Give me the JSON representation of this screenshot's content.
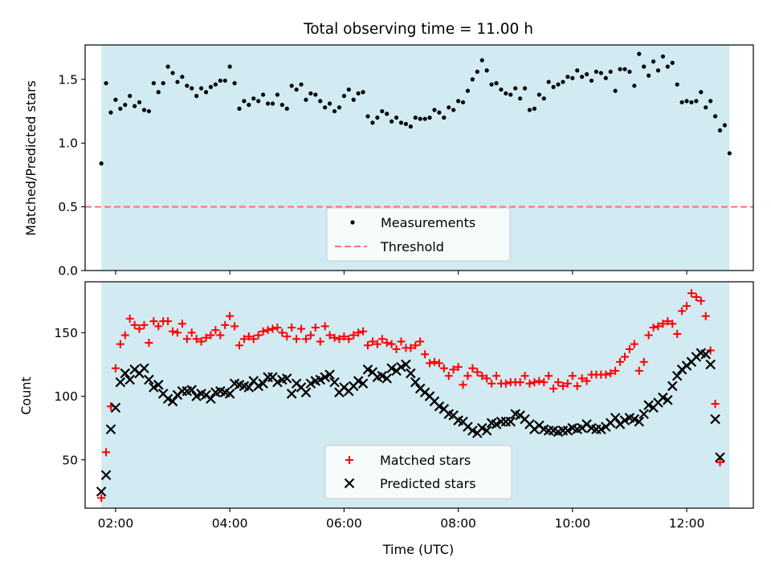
{
  "figure": {
    "title": "Total observing time = 11.00 h"
  },
  "chart_data": [
    {
      "type": "scatter",
      "title": "Total observing time = 11.00 h",
      "xlabel": "",
      "ylabel": "Matched/Predicted stars",
      "xlim": [
        "01:28",
        "13:10"
      ],
      "ylim": [
        0,
        1.77
      ],
      "yticks": [
        0.0,
        0.5,
        1.0,
        1.5
      ],
      "ytick_labels": [
        "0.0",
        "0.5",
        "1.0",
        "1.5"
      ],
      "shaded_span": [
        "01:45",
        "12:45"
      ],
      "shaded_color": "#add8e6",
      "legend_loc": "lower center",
      "series": [
        {
          "name": "Measurements",
          "marker": "dot",
          "color": "#000000",
          "x": [
            "01:45",
            "01:50",
            "01:55",
            "02:00",
            "02:05",
            "02:10",
            "02:15",
            "02:20",
            "02:25",
            "02:30",
            "02:35",
            "02:40",
            "02:45",
            "02:50",
            "02:55",
            "03:00",
            "03:05",
            "03:10",
            "03:15",
            "03:20",
            "03:25",
            "03:30",
            "03:35",
            "03:40",
            "03:45",
            "03:50",
            "03:55",
            "04:00",
            "04:05",
            "04:10",
            "04:15",
            "04:20",
            "04:25",
            "04:30",
            "04:35",
            "04:40",
            "04:45",
            "04:50",
            "04:55",
            "05:00",
            "05:05",
            "05:10",
            "05:15",
            "05:20",
            "05:25",
            "05:30",
            "05:35",
            "05:40",
            "05:45",
            "05:50",
            "05:55",
            "06:00",
            "06:05",
            "06:10",
            "06:15",
            "06:20",
            "06:25",
            "06:30",
            "06:35",
            "06:40",
            "06:45",
            "06:50",
            "06:55",
            "07:00",
            "07:05",
            "07:10",
            "07:15",
            "07:20",
            "07:25",
            "07:30",
            "07:35",
            "07:40",
            "07:45",
            "07:50",
            "07:55",
            "08:00",
            "08:05",
            "08:10",
            "08:15",
            "08:20",
            "08:25",
            "08:30",
            "08:35",
            "08:40",
            "08:45",
            "08:50",
            "08:55",
            "09:00",
            "09:05",
            "09:10",
            "09:15",
            "09:20",
            "09:25",
            "09:30",
            "09:35",
            "09:40",
            "09:45",
            "09:50",
            "09:55",
            "10:00",
            "10:05",
            "10:10",
            "10:15",
            "10:20",
            "10:25",
            "10:30",
            "10:35",
            "10:40",
            "10:45",
            "10:50",
            "10:55",
            "11:00",
            "11:05",
            "11:10",
            "11:15",
            "11:20",
            "11:25",
            "11:30",
            "11:35",
            "11:40",
            "11:45",
            "11:50",
            "11:55",
            "12:00",
            "12:05",
            "12:10",
            "12:15",
            "12:20",
            "12:25",
            "12:30",
            "12:35",
            "12:40",
            "12:45"
          ],
          "y": [
            0.84,
            1.47,
            1.24,
            1.34,
            1.27,
            1.3,
            1.37,
            1.29,
            1.32,
            1.26,
            1.25,
            1.47,
            1.4,
            1.47,
            1.6,
            1.55,
            1.48,
            1.52,
            1.45,
            1.43,
            1.37,
            1.43,
            1.4,
            1.44,
            1.46,
            1.49,
            1.49,
            1.6,
            1.47,
            1.27,
            1.33,
            1.3,
            1.35,
            1.33,
            1.38,
            1.31,
            1.31,
            1.38,
            1.3,
            1.27,
            1.45,
            1.42,
            1.46,
            1.34,
            1.39,
            1.38,
            1.33,
            1.28,
            1.31,
            1.25,
            1.28,
            1.37,
            1.42,
            1.34,
            1.39,
            1.4,
            1.21,
            1.16,
            1.2,
            1.25,
            1.23,
            1.17,
            1.2,
            1.16,
            1.15,
            1.13,
            1.2,
            1.19,
            1.19,
            1.2,
            1.26,
            1.24,
            1.2,
            1.28,
            1.26,
            1.33,
            1.32,
            1.41,
            1.5,
            1.56,
            1.65,
            1.57,
            1.46,
            1.47,
            1.42,
            1.39,
            1.38,
            1.43,
            1.35,
            1.43,
            1.26,
            1.27,
            1.38,
            1.35,
            1.48,
            1.44,
            1.46,
            1.48,
            1.52,
            1.51,
            1.57,
            1.52,
            1.54,
            1.49,
            1.56,
            1.55,
            1.51,
            1.56,
            1.41,
            1.58,
            1.58,
            1.56,
            1.45,
            1.7,
            1.6,
            1.53,
            1.64,
            1.57,
            1.68,
            1.6,
            1.63,
            1.46,
            1.32,
            1.33,
            1.32,
            1.33,
            1.4,
            1.28,
            1.33,
            1.21,
            1.1,
            1.14,
            0.92
          ]
        },
        {
          "name": "Threshold",
          "style": "dashed-line",
          "color": "#ff7070",
          "y_constant": 0.5
        }
      ]
    },
    {
      "type": "scatter",
      "title": "",
      "xlabel": "Time (UTC)",
      "ylabel": "Count",
      "xlim": [
        "01:28",
        "13:10"
      ],
      "ylim": [
        12,
        190
      ],
      "xticks": [
        "02:00",
        "04:00",
        "06:00",
        "08:00",
        "10:00",
        "12:00"
      ],
      "yticks": [
        50,
        100,
        150
      ],
      "ytick_labels": [
        "50",
        "100",
        "150"
      ],
      "shaded_span": [
        "01:45",
        "12:45"
      ],
      "shaded_color": "#add8e6",
      "legend_loc": "lower center",
      "x": [
        "01:45",
        "01:50",
        "01:55",
        "02:00",
        "02:05",
        "02:10",
        "02:15",
        "02:20",
        "02:25",
        "02:30",
        "02:35",
        "02:40",
        "02:45",
        "02:50",
        "02:55",
        "03:00",
        "03:05",
        "03:10",
        "03:15",
        "03:20",
        "03:25",
        "03:30",
        "03:35",
        "03:40",
        "03:45",
        "03:50",
        "03:55",
        "04:00",
        "04:05",
        "04:10",
        "04:15",
        "04:20",
        "04:25",
        "04:30",
        "04:35",
        "04:40",
        "04:45",
        "04:50",
        "04:55",
        "05:00",
        "05:05",
        "05:10",
        "05:15",
        "05:20",
        "05:25",
        "05:30",
        "05:35",
        "05:40",
        "05:45",
        "05:50",
        "05:55",
        "06:00",
        "06:05",
        "06:10",
        "06:15",
        "06:20",
        "06:25",
        "06:30",
        "06:35",
        "06:40",
        "06:45",
        "06:50",
        "06:55",
        "07:00",
        "07:05",
        "07:10",
        "07:15",
        "07:20",
        "07:25",
        "07:30",
        "07:35",
        "07:40",
        "07:45",
        "07:50",
        "07:55",
        "08:00",
        "08:05",
        "08:10",
        "08:15",
        "08:20",
        "08:25",
        "08:30",
        "08:35",
        "08:40",
        "08:45",
        "08:50",
        "08:55",
        "09:00",
        "09:05",
        "09:10",
        "09:15",
        "09:20",
        "09:25",
        "09:30",
        "09:35",
        "09:40",
        "09:45",
        "09:50",
        "09:55",
        "10:00",
        "10:05",
        "10:10",
        "10:15",
        "10:20",
        "10:25",
        "10:30",
        "10:35",
        "10:40",
        "10:45",
        "10:50",
        "10:55",
        "11:00",
        "11:05",
        "11:10",
        "11:15",
        "11:20",
        "11:25",
        "11:30",
        "11:35",
        "11:40",
        "11:45",
        "11:50",
        "11:55",
        "12:00",
        "12:05",
        "12:10",
        "12:15",
        "12:20",
        "12:25",
        "12:30",
        "12:35",
        "12:40",
        "12:45"
      ],
      "series": [
        {
          "name": "Matched stars",
          "marker": "plus",
          "color": "#ff0000",
          "values": [
            20,
            56,
            92,
            122,
            141,
            148,
            161,
            156,
            153,
            156,
            142,
            159,
            155,
            159,
            159,
            151,
            150,
            157,
            145,
            150,
            145,
            143,
            146,
            148,
            152,
            148,
            156,
            163,
            155,
            140,
            145,
            147,
            145,
            148,
            151,
            152,
            153,
            154,
            150,
            147,
            154,
            145,
            153,
            145,
            148,
            154,
            143,
            155,
            148,
            146,
            145,
            147,
            145,
            148,
            150,
            151,
            140,
            143,
            141,
            145,
            142,
            141,
            137,
            143,
            138,
            138,
            140,
            143,
            133,
            126,
            127,
            126,
            122,
            116,
            121,
            123,
            109,
            116,
            122,
            119,
            116,
            114,
            110,
            116,
            110,
            110,
            111,
            111,
            111,
            116,
            110,
            111,
            112,
            111,
            116,
            106,
            111,
            108,
            110,
            116,
            108,
            114,
            112,
            117,
            117,
            117,
            117,
            118,
            120,
            127,
            131,
            137,
            141,
            120,
            127,
            148,
            154,
            155,
            157,
            159,
            157,
            149,
            167,
            171,
            181,
            178,
            175,
            163,
            136,
            94,
            48
          ]
        },
        {
          "name": "Predicted stars",
          "marker": "x",
          "color": "#000000",
          "values": [
            25,
            38,
            74,
            91,
            111,
            118,
            113,
            121,
            118,
            122,
            113,
            107,
            109,
            102,
            98,
            96,
            101,
            104,
            104,
            105,
            100,
            102,
            101,
            98,
            103,
            104,
            103,
            102,
            110,
            109,
            108,
            107,
            112,
            108,
            110,
            115,
            115,
            111,
            113,
            114,
            102,
            110,
            107,
            103,
            110,
            112,
            113,
            115,
            117,
            111,
            103,
            107,
            104,
            108,
            112,
            110,
            121,
            119,
            115,
            116,
            114,
            122,
            120,
            123,
            125,
            118,
            111,
            106,
            103,
            100,
            96,
            92,
            90,
            86,
            85,
            81,
            80,
            76,
            73,
            71,
            75,
            73,
            79,
            78,
            80,
            80,
            80,
            86,
            85,
            82,
            78,
            74,
            77,
            74,
            73,
            73,
            72,
            73,
            73,
            75,
            74,
            75,
            78,
            75,
            74,
            74,
            76,
            79,
            83,
            78,
            81,
            83,
            82,
            80,
            86,
            93,
            91,
            95,
            99,
            97,
            108,
            116,
            121,
            124,
            127,
            131,
            134,
            133,
            125,
            82,
            52
          ]
        }
      ]
    }
  ]
}
